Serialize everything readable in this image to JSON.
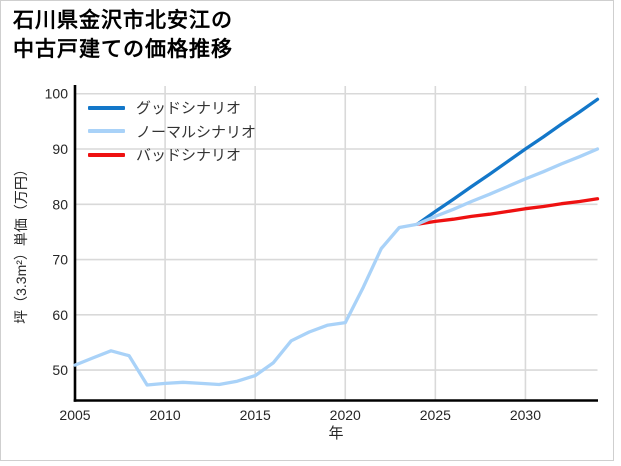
{
  "title": {
    "line1": "石川県金沢市北安江の",
    "line2": "中古戸建ての価格推移"
  },
  "chart_data": {
    "type": "line",
    "title": "石川県金沢市北安江の中古戸建ての価格推移",
    "xlabel": "年",
    "ylabel": "坪（3.3m²）単価（万円）",
    "x_ticks": [
      2005,
      2010,
      2015,
      2020,
      2025,
      2030
    ],
    "y_ticks": [
      50,
      60,
      70,
      80,
      90,
      100
    ],
    "xlim": [
      2005,
      2034
    ],
    "ylim": [
      44.5,
      101.4
    ],
    "grid": true,
    "legend_position": "top-left",
    "colors": {
      "grid": "#d9d9d9",
      "axis": "#000000",
      "tick_text": "#262626"
    },
    "series": [
      {
        "name": "グッドシナリオ",
        "color": "#1377c9",
        "x": [
          2024,
          2025,
          2026,
          2027,
          2028,
          2029,
          2030,
          2031,
          2032,
          2033,
          2034
        ],
        "values": [
          76.4,
          78.7,
          80.9,
          83.2,
          85.4,
          87.7,
          90.0,
          92.2,
          94.5,
          96.7,
          99.0
        ]
      },
      {
        "name": "ノーマルシナリオ",
        "color": "#a9d2f8",
        "x": [
          2005,
          2006,
          2007,
          2008,
          2009,
          2010,
          2011,
          2012,
          2013,
          2014,
          2015,
          2016,
          2017,
          2018,
          2019,
          2020,
          2021,
          2022,
          2023,
          2024,
          2025,
          2026,
          2027,
          2028,
          2029,
          2030,
          2031,
          2032,
          2033,
          2034
        ],
        "values": [
          50.9,
          52.2,
          53.5,
          52.6,
          47.3,
          47.6,
          47.8,
          47.6,
          47.4,
          48.0,
          49.0,
          51.3,
          55.3,
          56.9,
          58.1,
          58.6,
          65.0,
          72.0,
          75.8,
          76.4,
          77.8,
          79.1,
          80.5,
          81.8,
          83.2,
          84.6,
          85.9,
          87.3,
          88.6,
          90.0
        ]
      },
      {
        "name": "バッドシナリオ",
        "color": "#ee1111",
        "x": [
          2024,
          2025,
          2026,
          2027,
          2028,
          2029,
          2030,
          2031,
          2032,
          2033,
          2034
        ],
        "values": [
          76.4,
          76.9,
          77.3,
          77.8,
          78.2,
          78.7,
          79.2,
          79.6,
          80.1,
          80.5,
          81.0
        ]
      }
    ]
  }
}
